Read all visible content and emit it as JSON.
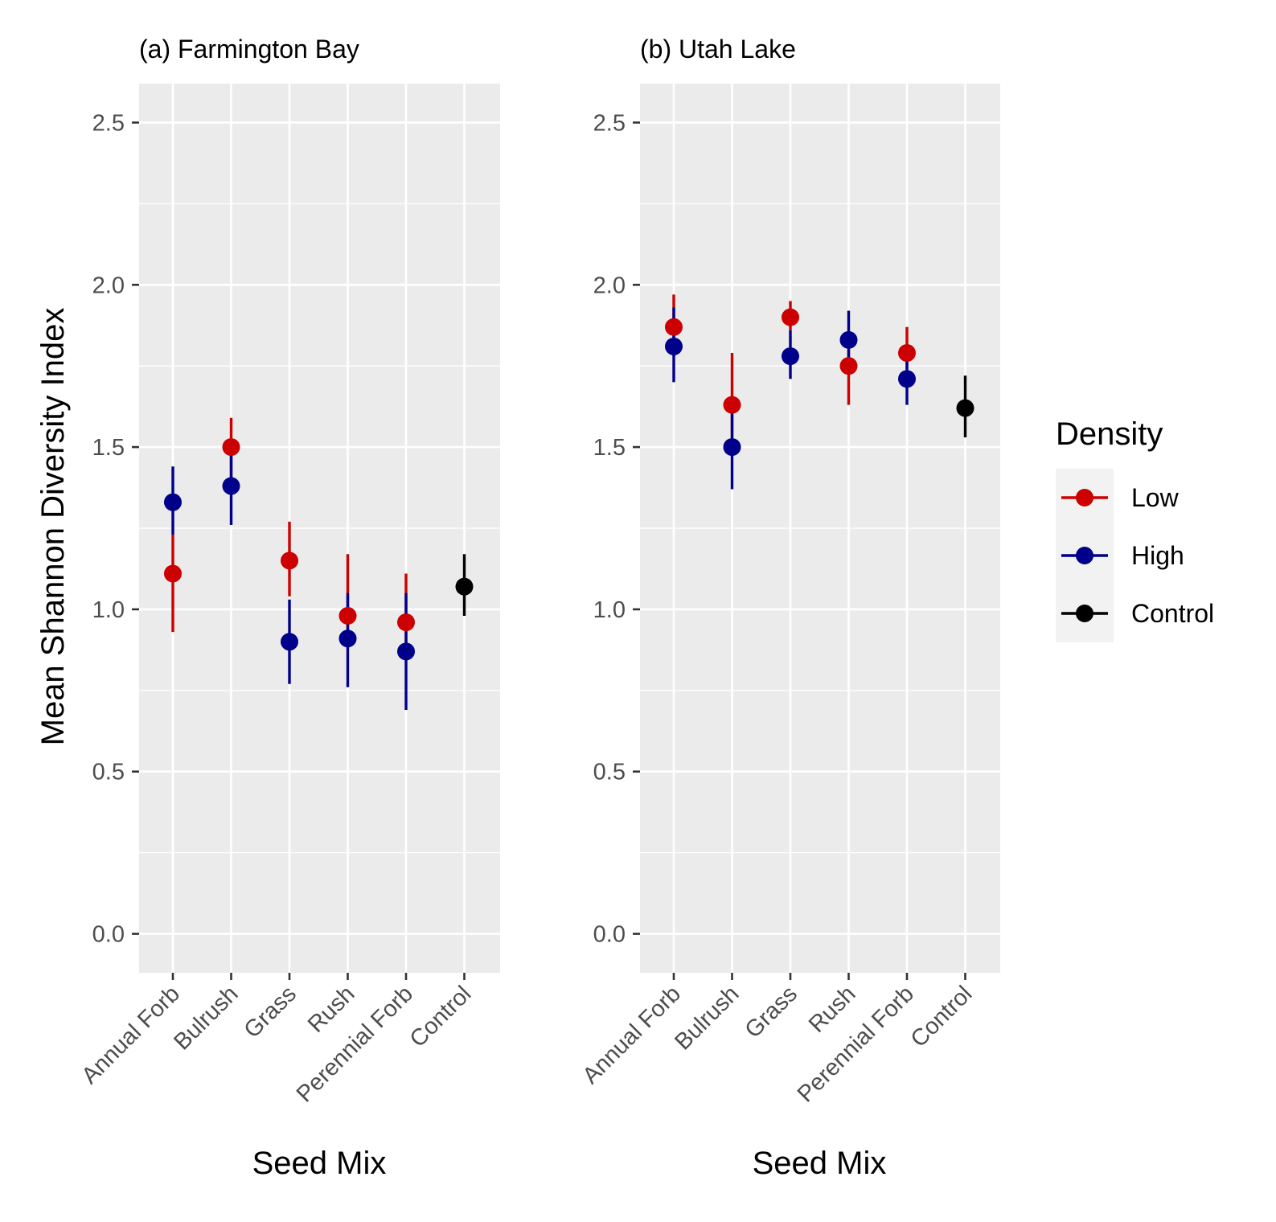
{
  "figure": {
    "ylabel": "Mean Shannon Diversity Index",
    "legend": {
      "title": "Density",
      "placement": "right",
      "entries": [
        {
          "label": "Low",
          "color": "#cc0000"
        },
        {
          "label": "High",
          "color": "#00008b"
        },
        {
          "label": "Control",
          "color": "#000000"
        }
      ]
    }
  },
  "chart_data": [
    {
      "type": "scatter",
      "title": "(a) Farmington Bay",
      "xlabel": "Seed Mix",
      "ylabel": "Mean Shannon Diversity Index",
      "categories": [
        "Annual Forb",
        "Bulrush",
        "Grass",
        "Rush",
        "Perennial Forb",
        "Control"
      ],
      "ylim": [
        -0.12,
        2.62
      ],
      "yticks": [
        "0.0",
        "0.5",
        "1.0",
        "1.5",
        "2.0",
        "2.5"
      ],
      "grid": true,
      "series": [
        {
          "name": "Low",
          "color": "#cc0000",
          "points": [
            {
              "category": "Annual Forb",
              "mean": 1.11,
              "lower": 0.93,
              "upper": 1.23
            },
            {
              "category": "Bulrush",
              "mean": 1.5,
              "lower": 1.4,
              "upper": 1.59
            },
            {
              "category": "Grass",
              "mean": 1.15,
              "lower": 1.04,
              "upper": 1.27
            },
            {
              "category": "Rush",
              "mean": 0.98,
              "lower": 0.88,
              "upper": 1.17
            },
            {
              "category": "Perennial Forb",
              "mean": 0.96,
              "lower": 0.89,
              "upper": 1.11
            }
          ]
        },
        {
          "name": "High",
          "color": "#00008b",
          "points": [
            {
              "category": "Annual Forb",
              "mean": 1.33,
              "lower": 1.23,
              "upper": 1.44
            },
            {
              "category": "Bulrush",
              "mean": 1.38,
              "lower": 1.26,
              "upper": 1.49
            },
            {
              "category": "Grass",
              "mean": 0.9,
              "lower": 0.77,
              "upper": 1.03
            },
            {
              "category": "Rush",
              "mean": 0.91,
              "lower": 0.76,
              "upper": 1.05
            },
            {
              "category": "Perennial Forb",
              "mean": 0.87,
              "lower": 0.69,
              "upper": 1.05
            }
          ]
        },
        {
          "name": "Control",
          "color": "#000000",
          "points": [
            {
              "category": "Control",
              "mean": 1.07,
              "lower": 0.98,
              "upper": 1.17
            }
          ]
        }
      ]
    },
    {
      "type": "scatter",
      "title": "(b) Utah Lake",
      "xlabel": "Seed Mix",
      "ylabel": "",
      "categories": [
        "Annual Forb",
        "Bulrush",
        "Grass",
        "Rush",
        "Perennial Forb",
        "Control"
      ],
      "ylim": [
        -0.12,
        2.62
      ],
      "yticks": [
        "0.0",
        "0.5",
        "1.0",
        "1.5",
        "2.0",
        "2.5"
      ],
      "grid": true,
      "series": [
        {
          "name": "Low",
          "color": "#cc0000",
          "points": [
            {
              "category": "Annual Forb",
              "mean": 1.87,
              "lower": 1.78,
              "upper": 1.97
            },
            {
              "category": "Bulrush",
              "mean": 1.63,
              "lower": 1.49,
              "upper": 1.79
            },
            {
              "category": "Grass",
              "mean": 1.9,
              "lower": 1.86,
              "upper": 1.95
            },
            {
              "category": "Rush",
              "mean": 1.75,
              "lower": 1.63,
              "upper": 1.8
            },
            {
              "category": "Perennial Forb",
              "mean": 1.79,
              "lower": 1.74,
              "upper": 1.87
            }
          ]
        },
        {
          "name": "High",
          "color": "#00008b",
          "points": [
            {
              "category": "Annual Forb",
              "mean": 1.81,
              "lower": 1.7,
              "upper": 1.93
            },
            {
              "category": "Bulrush",
              "mean": 1.5,
              "lower": 1.37,
              "upper": 1.63
            },
            {
              "category": "Grass",
              "mean": 1.78,
              "lower": 1.71,
              "upper": 1.86
            },
            {
              "category": "Rush",
              "mean": 1.83,
              "lower": 1.75,
              "upper": 1.92
            },
            {
              "category": "Perennial Forb",
              "mean": 1.71,
              "lower": 1.63,
              "upper": 1.8
            }
          ]
        },
        {
          "name": "Control",
          "color": "#000000",
          "points": [
            {
              "category": "Control",
              "mean": 1.62,
              "lower": 1.53,
              "upper": 1.72
            }
          ]
        }
      ]
    }
  ]
}
